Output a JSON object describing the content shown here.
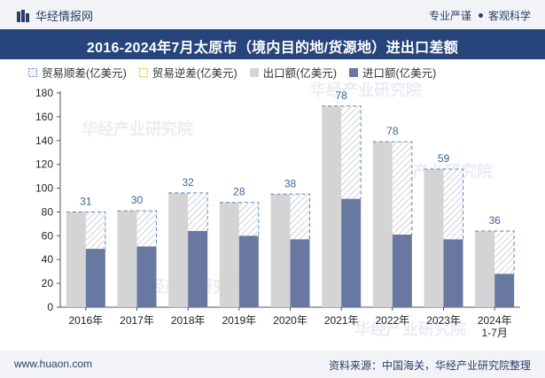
{
  "header": {
    "brand_name": "华经情报网",
    "tag_1": "专业严谨",
    "tag_2": "客观科学"
  },
  "title": "2016-2024年7月太原市（境内目的地/货源地）进出口差额",
  "footer": {
    "url": "www.huaon.com",
    "source": "资料来源：中国海关，华经产业研究院整理"
  },
  "watermark": "华经产业研究院",
  "colors": {
    "export": "#d4d4d4",
    "import": "#6878a0",
    "surplus_outline": "#5b86bd",
    "deficit_outline": "#f0b400",
    "label": "#3b6690"
  },
  "chart_data": {
    "type": "bar",
    "categories": [
      "2016年",
      "2017年",
      "2018年",
      "2019年",
      "2020年",
      "2021年",
      "2022年",
      "2023年",
      "2024年\n1-7月"
    ],
    "series": [
      {
        "name": "贸易顺差(亿美元)",
        "values": [
          31,
          30,
          32,
          28,
          38,
          78,
          78,
          59,
          36
        ]
      },
      {
        "name": "贸易逆差(亿美元)",
        "values": [
          0,
          0,
          0,
          0,
          0,
          0,
          0,
          0,
          0
        ]
      },
      {
        "name": "出口额(亿美元)",
        "values": [
          80,
          81,
          96,
          88,
          95,
          169,
          139,
          116,
          64
        ]
      },
      {
        "name": "进口额(亿美元)",
        "values": [
          49,
          51,
          64,
          60,
          57,
          91,
          61,
          57,
          28
        ]
      }
    ],
    "ylim": [
      0,
      180
    ],
    "yticks": [
      0,
      20,
      40,
      60,
      80,
      100,
      120,
      140,
      160,
      180
    ],
    "legend_position": "top-left",
    "grid": false
  }
}
